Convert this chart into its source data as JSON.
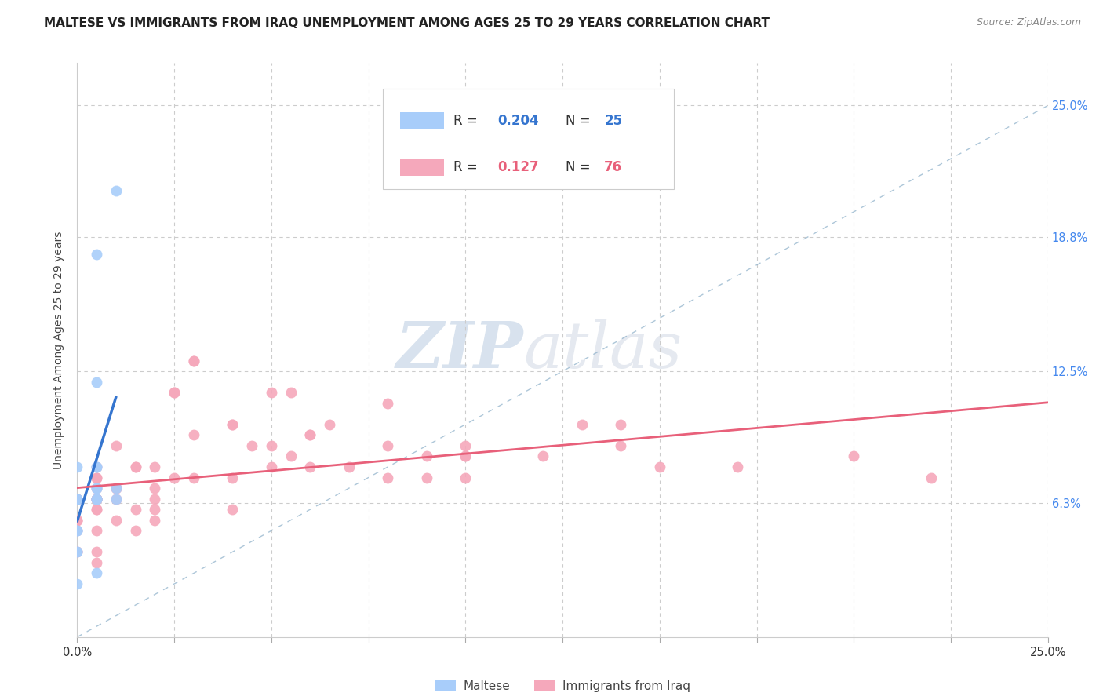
{
  "title": "MALTESE VS IMMIGRANTS FROM IRAQ UNEMPLOYMENT AMONG AGES 25 TO 29 YEARS CORRELATION CHART",
  "source": "Source: ZipAtlas.com",
  "ylabel": "Unemployment Among Ages 25 to 29 years",
  "xlim": [
    0.0,
    0.25
  ],
  "ylim": [
    0.0,
    0.27
  ],
  "maltese_color": "#A8CDFA",
  "iraq_color": "#F5A8BB",
  "maltese_line_color": "#3575CF",
  "iraq_line_color": "#E8607A",
  "diag_line_color": "#8AAEC8",
  "watermark_zip": "ZIP",
  "watermark_atlas": "atlas",
  "title_fontsize": 11,
  "source_fontsize": 9,
  "label_fontsize": 10,
  "tick_fontsize": 10.5,
  "watermark_fontsize": 60,
  "maltese_x": [
    0.005,
    0.01,
    0.0,
    0.0,
    0.0,
    0.005,
    0.0,
    0.0,
    0.005,
    0.005,
    0.005,
    0.005,
    0.005,
    0.01,
    0.0,
    0.0,
    0.0,
    0.005,
    0.0,
    0.01,
    0.0,
    0.0,
    0.0,
    0.005,
    0.005
  ],
  "maltese_y": [
    0.12,
    0.21,
    0.065,
    0.08,
    0.065,
    0.08,
    0.05,
    0.065,
    0.065,
    0.065,
    0.07,
    0.07,
    0.08,
    0.07,
    0.04,
    0.065,
    0.04,
    0.065,
    0.065,
    0.065,
    0.05,
    0.05,
    0.025,
    0.03,
    0.18
  ],
  "iraq_x": [
    0.0,
    0.0,
    0.0,
    0.0,
    0.0,
    0.0,
    0.0,
    0.0,
    0.005,
    0.005,
    0.005,
    0.005,
    0.005,
    0.005,
    0.005,
    0.005,
    0.005,
    0.005,
    0.005,
    0.005,
    0.01,
    0.01,
    0.01,
    0.01,
    0.015,
    0.015,
    0.015,
    0.02,
    0.02,
    0.02,
    0.02,
    0.025,
    0.025,
    0.03,
    0.03,
    0.03,
    0.04,
    0.04,
    0.04,
    0.045,
    0.05,
    0.05,
    0.055,
    0.055,
    0.06,
    0.06,
    0.065,
    0.07,
    0.08,
    0.08,
    0.09,
    0.1,
    0.1,
    0.1,
    0.12,
    0.13,
    0.14,
    0.14,
    0.15,
    0.17,
    0.2,
    0.22,
    0.0,
    0.005,
    0.005,
    0.01,
    0.015,
    0.02,
    0.025,
    0.03,
    0.04,
    0.05,
    0.06,
    0.08,
    0.09,
    0.1
  ],
  "iraq_y": [
    0.065,
    0.065,
    0.065,
    0.055,
    0.055,
    0.05,
    0.04,
    0.04,
    0.075,
    0.075,
    0.07,
    0.065,
    0.065,
    0.06,
    0.06,
    0.05,
    0.065,
    0.065,
    0.065,
    0.08,
    0.07,
    0.07,
    0.065,
    0.055,
    0.08,
    0.06,
    0.05,
    0.07,
    0.06,
    0.065,
    0.055,
    0.115,
    0.075,
    0.13,
    0.13,
    0.095,
    0.1,
    0.075,
    0.1,
    0.09,
    0.09,
    0.08,
    0.115,
    0.085,
    0.095,
    0.08,
    0.1,
    0.08,
    0.11,
    0.09,
    0.085,
    0.09,
    0.085,
    0.085,
    0.085,
    0.1,
    0.1,
    0.09,
    0.08,
    0.08,
    0.085,
    0.075,
    0.055,
    0.04,
    0.035,
    0.09,
    0.08,
    0.08,
    0.115,
    0.075,
    0.06,
    0.115,
    0.095,
    0.075,
    0.075,
    0.075
  ]
}
